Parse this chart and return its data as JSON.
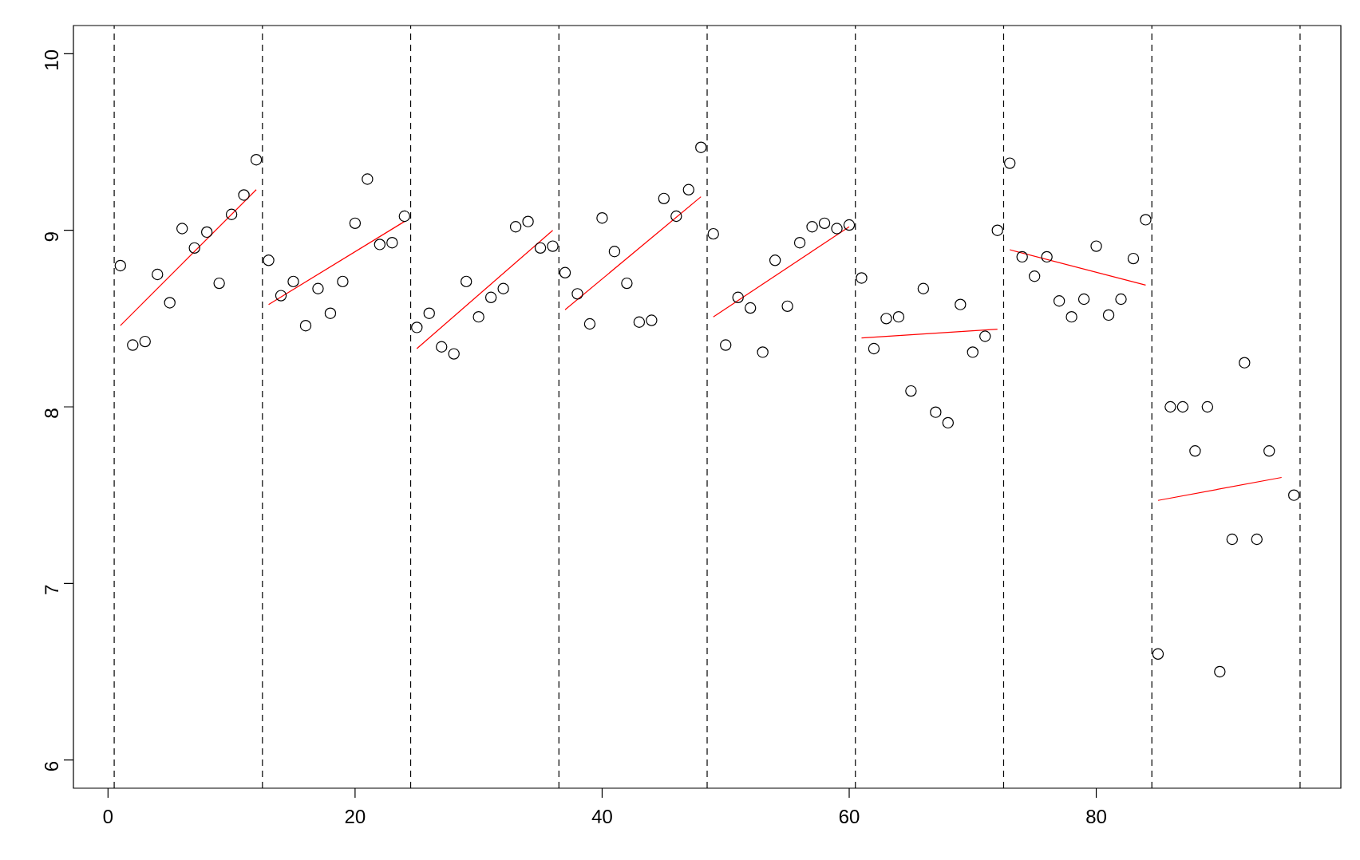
{
  "chart_data": {
    "type": "scatter",
    "xlim": [
      -2.8,
      99.8
    ],
    "ylim": [
      5.84,
      10.16
    ],
    "xticks": [
      0,
      20,
      40,
      60,
      80
    ],
    "yticks": [
      6,
      7,
      8,
      9,
      10
    ],
    "grid": false,
    "marker": "circle",
    "series": [
      {
        "color": "#000000",
        "x": [
          1,
          2,
          3,
          4,
          5,
          6,
          7,
          8,
          9,
          10,
          11,
          12,
          13,
          14,
          15,
          16,
          17,
          18,
          19,
          20,
          21,
          22,
          23,
          24,
          25,
          26,
          27,
          28,
          29,
          30,
          31,
          32,
          33,
          34,
          35,
          36,
          37,
          38,
          39,
          40,
          41,
          42,
          43,
          44,
          45,
          46,
          47,
          48,
          49,
          50,
          51,
          52,
          53,
          54,
          55,
          56,
          57,
          58,
          59,
          60,
          61,
          62,
          63,
          64,
          65,
          66,
          67,
          68,
          69,
          70,
          71,
          72,
          73,
          74,
          75,
          76,
          77,
          78,
          79,
          80,
          81,
          82,
          83,
          84,
          85,
          86,
          87,
          88,
          89,
          90,
          91,
          92,
          93,
          94,
          95,
          96
        ],
        "values": [
          8.8,
          8.35,
          8.37,
          8.75,
          8.59,
          9.01,
          8.9,
          8.99,
          8.7,
          9.09,
          9.2,
          9.4,
          8.83,
          8.63,
          8.71,
          8.46,
          8.67,
          8.53,
          8.71,
          9.04,
          9.29,
          8.92,
          8.93,
          9.08,
          8.45,
          8.53,
          8.34,
          8.3,
          8.71,
          8.51,
          8.62,
          8.67,
          9.02,
          9.05,
          8.9,
          8.91,
          8.76,
          8.64,
          8.47,
          9.07,
          8.88,
          8.7,
          8.48,
          8.49,
          9.18,
          9.08,
          9.23,
          9.47,
          8.98,
          8.35,
          8.62,
          8.56,
          8.31,
          8.83,
          8.57,
          8.93,
          9.02,
          9.04,
          9.01,
          9.03,
          8.73,
          8.33,
          8.5,
          8.51,
          8.09,
          8.67,
          7.97,
          7.91,
          8.58,
          8.31,
          8.4,
          9.0,
          9.38,
          8.85,
          8.74,
          8.85,
          8.6,
          8.51,
          8.61,
          8.91,
          8.52,
          8.61,
          8.84,
          9.06,
          6.6,
          8.0,
          8.0,
          7.75,
          8.0,
          6.5,
          7.25,
          8.25,
          7.25,
          7.75,
          null,
          7.5
        ]
      },
      {
        "type": "line",
        "color": "#ff0000",
        "marker": "none",
        "x": [
          1,
          12
        ],
        "values": [
          8.46,
          9.23
        ]
      },
      {
        "type": "line",
        "color": "#ff0000",
        "marker": "none",
        "x": [
          13,
          24
        ],
        "values": [
          8.58,
          9.05
        ]
      },
      {
        "type": "line",
        "color": "#ff0000",
        "marker": "none",
        "x": [
          25,
          36
        ],
        "values": [
          8.33,
          9.0
        ]
      },
      {
        "type": "line",
        "color": "#ff0000",
        "marker": "none",
        "x": [
          37,
          48
        ],
        "values": [
          8.55,
          9.19
        ]
      },
      {
        "type": "line",
        "color": "#ff0000",
        "marker": "none",
        "x": [
          49,
          60
        ],
        "values": [
          8.51,
          9.02
        ]
      },
      {
        "type": "line",
        "color": "#ff0000",
        "marker": "none",
        "x": [
          61,
          72
        ],
        "values": [
          8.39,
          8.44
        ]
      },
      {
        "type": "line",
        "color": "#ff0000",
        "marker": "none",
        "x": [
          73,
          84
        ],
        "values": [
          8.89,
          8.69
        ]
      },
      {
        "type": "line",
        "color": "#ff0000",
        "marker": "none",
        "x": [
          85,
          95
        ],
        "values": [
          7.47,
          7.6
        ]
      }
    ],
    "ref_lines": [
      {
        "axis": "x",
        "value": 0.5,
        "color": "#000000",
        "line_style": "dashed"
      },
      {
        "axis": "x",
        "value": 12.5,
        "color": "#000000",
        "line_style": "dashed"
      },
      {
        "axis": "x",
        "value": 24.5,
        "color": "#000000",
        "line_style": "dashed"
      },
      {
        "axis": "x",
        "value": 36.5,
        "color": "#000000",
        "line_style": "dashed"
      },
      {
        "axis": "x",
        "value": 48.5,
        "color": "#000000",
        "line_style": "dashed"
      },
      {
        "axis": "x",
        "value": 60.5,
        "color": "#000000",
        "line_style": "dashed"
      },
      {
        "axis": "x",
        "value": 72.5,
        "color": "#000000",
        "line_style": "dashed"
      },
      {
        "axis": "x",
        "value": 84.5,
        "color": "#000000",
        "line_style": "dashed"
      },
      {
        "axis": "x",
        "value": 96.5,
        "color": "#000000",
        "line_style": "dashed"
      }
    ]
  }
}
